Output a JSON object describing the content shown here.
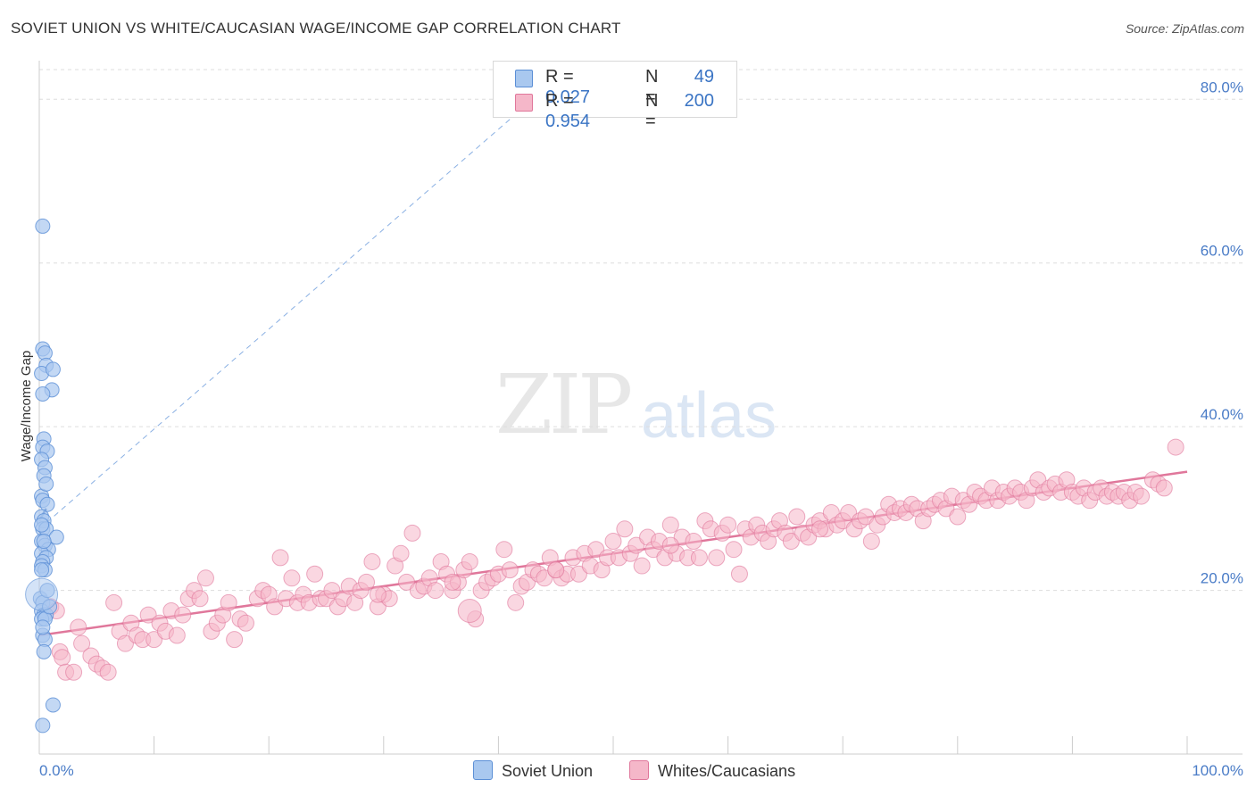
{
  "header": {
    "title": "SOVIET UNION VS WHITE/CAUCASIAN WAGE/INCOME GAP CORRELATION CHART",
    "source": "Source: ZipAtlas.com"
  },
  "watermark": {
    "part1": "ZIP",
    "part2": "atlas"
  },
  "legend": {
    "rows": [
      {
        "r_label": "R =",
        "r_value": "0.027",
        "n_label": "N =",
        "n_value": "49",
        "color": "#a9c8ef"
      },
      {
        "r_label": "R =",
        "r_value": "0.954",
        "n_label": "N =",
        "n_value": "200",
        "color": "#f5b7c9"
      }
    ]
  },
  "bottom_legend": {
    "items": [
      {
        "label": "Soviet Union",
        "color": "#a9c8ef"
      },
      {
        "label": "Whites/Caucasians",
        "color": "#f5b7c9"
      }
    ]
  },
  "chart_data": {
    "type": "scatter",
    "title": "SOVIET UNION VS WHITE/CAUCASIAN WAGE/INCOME GAP CORRELATION CHART",
    "ylabel": "Wage/Income Gap",
    "xlabel": "",
    "xlim": [
      0,
      100
    ],
    "ylim": [
      0,
      85
    ],
    "x_tick_labels": [
      "0.0%",
      "100.0%"
    ],
    "y_ticks": [
      20,
      40,
      60,
      80
    ],
    "y_tick_labels": [
      "20.0%",
      "40.0%",
      "60.0%",
      "80.0%"
    ],
    "grid": true,
    "colors": {
      "soviet": "#5b8fd6",
      "soviet_fill": "#a9c8ef",
      "white": "#e0779b",
      "white_fill": "#f5b7c9"
    },
    "series": [
      {
        "name": "Soviet Union",
        "trend": {
          "x": [
            0,
            0.6
          ],
          "y": [
            28.5,
            30.0
          ],
          "extension": {
            "x": [
              0,
              43
            ],
            "y": [
              27.5,
              80.0
            ]
          }
        },
        "points": [
          [
            0.3,
            64.5
          ],
          [
            0.3,
            49.5
          ],
          [
            0.5,
            49.0
          ],
          [
            0.6,
            47.5
          ],
          [
            0.2,
            46.5
          ],
          [
            1.2,
            47.0
          ],
          [
            1.1,
            44.5
          ],
          [
            0.3,
            44.0
          ],
          [
            0.4,
            38.5
          ],
          [
            0.3,
            37.5
          ],
          [
            0.7,
            37.0
          ],
          [
            0.2,
            36.0
          ],
          [
            0.5,
            35.0
          ],
          [
            0.4,
            34.0
          ],
          [
            0.2,
            31.5
          ],
          [
            0.3,
            31.0
          ],
          [
            0.7,
            30.5
          ],
          [
            0.2,
            29.0
          ],
          [
            0.4,
            28.5
          ],
          [
            0.3,
            27.5
          ],
          [
            0.6,
            27.5
          ],
          [
            1.5,
            26.5
          ],
          [
            0.2,
            26.0
          ],
          [
            0.5,
            25.5
          ],
          [
            0.8,
            25.0
          ],
          [
            0.2,
            24.5
          ],
          [
            0.6,
            24.0
          ],
          [
            0.3,
            23.5
          ],
          [
            0.2,
            23.0
          ],
          [
            0.5,
            22.5
          ],
          [
            0.1,
            19.0
          ],
          [
            0.3,
            18.5
          ],
          [
            0.2,
            17.5
          ],
          [
            0.4,
            17.0
          ],
          [
            0.6,
            17.0
          ],
          [
            0.2,
            16.5
          ],
          [
            0.5,
            16.5
          ],
          [
            0.3,
            14.5
          ],
          [
            0.5,
            14.0
          ],
          [
            0.4,
            12.5
          ],
          [
            1.2,
            6.0
          ],
          [
            0.3,
            3.5
          ],
          [
            0.2,
            28.0
          ],
          [
            0.6,
            33.0
          ],
          [
            0.4,
            26.0
          ],
          [
            0.2,
            22.5
          ],
          [
            0.9,
            18.0
          ],
          [
            0.3,
            15.5
          ],
          [
            0.7,
            20.0
          ]
        ]
      },
      {
        "name": "Whites/Caucasians",
        "trend": {
          "x": [
            0,
            100
          ],
          "y": [
            14.5,
            34.5
          ]
        },
        "points": [
          [
            1,
            18
          ],
          [
            1.5,
            17.5
          ],
          [
            1.8,
            12.5
          ],
          [
            2,
            11.8
          ],
          [
            2.3,
            10
          ],
          [
            3,
            10
          ],
          [
            3.4,
            15.5
          ],
          [
            3.7,
            13.5
          ],
          [
            4.5,
            12
          ],
          [
            5,
            11
          ],
          [
            5.5,
            10.5
          ],
          [
            6,
            10
          ],
          [
            6.5,
            18.5
          ],
          [
            7,
            15
          ],
          [
            7.5,
            13.5
          ],
          [
            8,
            16
          ],
          [
            8.5,
            14.5
          ],
          [
            9,
            14
          ],
          [
            9.5,
            17
          ],
          [
            10,
            14
          ],
          [
            10.5,
            16
          ],
          [
            11,
            15
          ],
          [
            11.5,
            17.5
          ],
          [
            12,
            14.5
          ],
          [
            12.5,
            17
          ],
          [
            13,
            19
          ],
          [
            13.5,
            20
          ],
          [
            14,
            19
          ],
          [
            14.5,
            21.5
          ],
          [
            15,
            15
          ],
          [
            15.5,
            16
          ],
          [
            16,
            17
          ],
          [
            16.5,
            18.5
          ],
          [
            17,
            14
          ],
          [
            17.5,
            16.5
          ],
          [
            18,
            16
          ],
          [
            19,
            19
          ],
          [
            19.5,
            20
          ],
          [
            20,
            19.5
          ],
          [
            20.5,
            18
          ],
          [
            21,
            24
          ],
          [
            21.5,
            19
          ],
          [
            22,
            21.5
          ],
          [
            22.5,
            18.5
          ],
          [
            23,
            19.5
          ],
          [
            23.5,
            18.5
          ],
          [
            24,
            22
          ],
          [
            24.5,
            19
          ],
          [
            25,
            19
          ],
          [
            25.5,
            20
          ],
          [
            26,
            18
          ],
          [
            26.5,
            19
          ],
          [
            27,
            20.5
          ],
          [
            27.5,
            18.5
          ],
          [
            28,
            20
          ],
          [
            28.5,
            21
          ],
          [
            29,
            23.5
          ],
          [
            29.5,
            18
          ],
          [
            30,
            19.5
          ],
          [
            30.5,
            19
          ],
          [
            31,
            23
          ],
          [
            31.5,
            24.5
          ],
          [
            32,
            21
          ],
          [
            32.5,
            27
          ],
          [
            33,
            20
          ],
          [
            33.5,
            20.5
          ],
          [
            34,
            21.5
          ],
          [
            34.5,
            20
          ],
          [
            35,
            23.5
          ],
          [
            35.5,
            22
          ],
          [
            36,
            20
          ],
          [
            36.5,
            21
          ],
          [
            37,
            22.5
          ],
          [
            37.5,
            23.5
          ],
          [
            38,
            16.5
          ],
          [
            38.5,
            20
          ],
          [
            39,
            21
          ],
          [
            39.5,
            21.5
          ],
          [
            40,
            22
          ],
          [
            40.5,
            25
          ],
          [
            41,
            22.5
          ],
          [
            41.5,
            18.5
          ],
          [
            42,
            20.5
          ],
          [
            42.5,
            21
          ],
          [
            43,
            22.5
          ],
          [
            43.5,
            22
          ],
          [
            44,
            21.5
          ],
          [
            44.5,
            24
          ],
          [
            45,
            22.5
          ],
          [
            45.5,
            21.5
          ],
          [
            46,
            22
          ],
          [
            46.5,
            24
          ],
          [
            47,
            22
          ],
          [
            47.5,
            24.5
          ],
          [
            48,
            23
          ],
          [
            48.5,
            25
          ],
          [
            49,
            22.5
          ],
          [
            49.5,
            24
          ],
          [
            50,
            26
          ],
          [
            50.5,
            24
          ],
          [
            51,
            27.5
          ],
          [
            51.5,
            24.5
          ],
          [
            52,
            25.5
          ],
          [
            52.5,
            23
          ],
          [
            53,
            26.5
          ],
          [
            53.5,
            25
          ],
          [
            54,
            26
          ],
          [
            54.5,
            24
          ],
          [
            55,
            28
          ],
          [
            55.5,
            24.5
          ],
          [
            56,
            26.5
          ],
          [
            56.5,
            24
          ],
          [
            57,
            26
          ],
          [
            57.5,
            24
          ],
          [
            58,
            28.5
          ],
          [
            58.5,
            27.5
          ],
          [
            59,
            24
          ],
          [
            59.5,
            27
          ],
          [
            60,
            28
          ],
          [
            60.5,
            25
          ],
          [
            61,
            22
          ],
          [
            61.5,
            27.5
          ],
          [
            62,
            26.5
          ],
          [
            62.5,
            28
          ],
          [
            63,
            27
          ],
          [
            63.5,
            26
          ],
          [
            64,
            27.5
          ],
          [
            64.5,
            28.5
          ],
          [
            65,
            27
          ],
          [
            65.5,
            26
          ],
          [
            66,
            29
          ],
          [
            66.5,
            27
          ],
          [
            67,
            26.5
          ],
          [
            67.5,
            28
          ],
          [
            68,
            28.5
          ],
          [
            68.5,
            27.5
          ],
          [
            69,
            29.5
          ],
          [
            69.5,
            28
          ],
          [
            70,
            28.5
          ],
          [
            70.5,
            29.5
          ],
          [
            71,
            27.5
          ],
          [
            71.5,
            28.5
          ],
          [
            72,
            29
          ],
          [
            72.5,
            26
          ],
          [
            73,
            28
          ],
          [
            73.5,
            29
          ],
          [
            74,
            30.5
          ],
          [
            74.5,
            29.5
          ],
          [
            75,
            30
          ],
          [
            75.5,
            29.5
          ],
          [
            76,
            30.5
          ],
          [
            76.5,
            30
          ],
          [
            77,
            28.5
          ],
          [
            77.5,
            30
          ],
          [
            78,
            30.5
          ],
          [
            78.5,
            31
          ],
          [
            79,
            30
          ],
          [
            79.5,
            31.5
          ],
          [
            80,
            29
          ],
          [
            80.5,
            31
          ],
          [
            81,
            30.5
          ],
          [
            81.5,
            32
          ],
          [
            82,
            31.5
          ],
          [
            82.5,
            31
          ],
          [
            83,
            32.5
          ],
          [
            83.5,
            31
          ],
          [
            84,
            32
          ],
          [
            84.5,
            31.5
          ],
          [
            85,
            32.5
          ],
          [
            85.5,
            32
          ],
          [
            86,
            31
          ],
          [
            86.5,
            32.5
          ],
          [
            87,
            33.5
          ],
          [
            87.5,
            32
          ],
          [
            88,
            32.5
          ],
          [
            88.5,
            33
          ],
          [
            89,
            32
          ],
          [
            89.5,
            33.5
          ],
          [
            90,
            32
          ],
          [
            90.5,
            31.5
          ],
          [
            91,
            32.5
          ],
          [
            91.5,
            31
          ],
          [
            92,
            32
          ],
          [
            92.5,
            32.5
          ],
          [
            93,
            31.5
          ],
          [
            93.5,
            32
          ],
          [
            94,
            31.5
          ],
          [
            94.5,
            32
          ],
          [
            95,
            31
          ],
          [
            95.5,
            32
          ],
          [
            96,
            31.5
          ],
          [
            97,
            33.5
          ],
          [
            97.5,
            33
          ],
          [
            98,
            32.5
          ],
          [
            99,
            37.5
          ],
          [
            29.5,
            19.5
          ],
          [
            36,
            21
          ],
          [
            45,
            22.5
          ],
          [
            55,
            25.5
          ],
          [
            68,
            27.5
          ]
        ]
      }
    ]
  }
}
